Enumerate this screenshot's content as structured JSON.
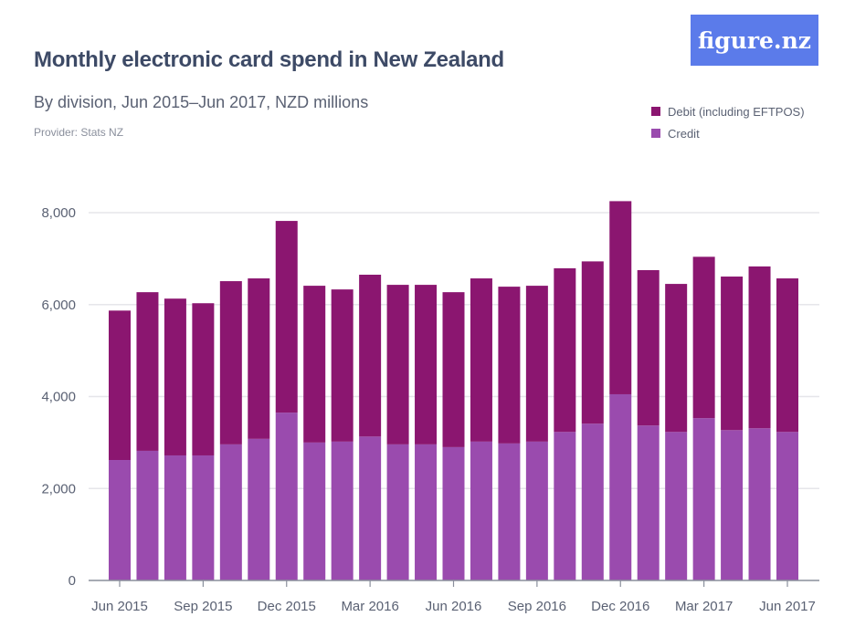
{
  "header": {
    "title": "Monthly electronic card spend in New Zealand",
    "subtitle": "By division, Jun 2015–Jun 2017, NZD millions",
    "provider": "Provider: Stats NZ",
    "logo_text": "figure.nz"
  },
  "colors": {
    "debit": "#8b1670",
    "credit": "#9a4bae",
    "logo_bg": "#5b7bea",
    "grid": "#e6e6ea",
    "axis": "#8a8f9c"
  },
  "chart_data": {
    "type": "bar",
    "stacked": true,
    "title": "Monthly electronic card spend in New Zealand",
    "subtitle": "By division, Jun 2015–Jun 2017, NZD millions",
    "xlabel": "",
    "ylabel": "",
    "ylim": [
      0,
      8000
    ],
    "yticks": [
      0,
      2000,
      4000,
      6000,
      8000
    ],
    "ytick_labels": [
      "0",
      "2,000",
      "4,000",
      "6,000",
      "8,000"
    ],
    "grid": true,
    "legend_position": "top-right",
    "categories": [
      "Jun 2015",
      "Jul 2015",
      "Aug 2015",
      "Sep 2015",
      "Oct 2015",
      "Nov 2015",
      "Dec 2015",
      "Jan 2016",
      "Feb 2016",
      "Mar 2016",
      "Apr 2016",
      "May 2016",
      "Jun 2016",
      "Jul 2016",
      "Aug 2016",
      "Sep 2016",
      "Oct 2016",
      "Nov 2016",
      "Dec 2016",
      "Jan 2017",
      "Feb 2017",
      "Mar 2017",
      "Apr 2017",
      "May 2017",
      "Jun 2017"
    ],
    "xtick_labels": [
      "Jun 2015",
      "Sep 2015",
      "Dec 2015",
      "Mar 2016",
      "Jun 2016",
      "Sep 2016",
      "Dec 2016",
      "Mar 2017",
      "Jun 2017"
    ],
    "series": [
      {
        "name": "Credit",
        "values": [
          2620,
          2820,
          2720,
          2720,
          2960,
          3080,
          3650,
          3000,
          3020,
          3130,
          2960,
          2960,
          2900,
          3020,
          2980,
          3020,
          3230,
          3410,
          4050,
          3370,
          3230,
          3530,
          3270,
          3310,
          3230
        ]
      },
      {
        "name": "Debit (including EFTPOS)",
        "values": [
          3250,
          3450,
          3410,
          3310,
          3550,
          3490,
          4170,
          3410,
          3310,
          3520,
          3470,
          3470,
          3370,
          3550,
          3410,
          3390,
          3560,
          3530,
          4200,
          3380,
          3220,
          3510,
          3340,
          3520,
          3340
        ]
      }
    ]
  }
}
